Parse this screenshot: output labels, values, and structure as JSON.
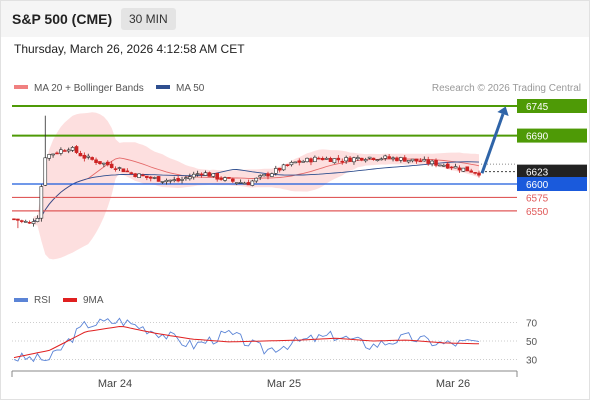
{
  "header": {
    "title": "S&P 500 (CME)",
    "timeframe": "30 MIN",
    "timestamp": "Thursday, March 26, 2026 4:12:58 AM CET"
  },
  "legend": {
    "ma20": "MA 20 + Bollinger Bands",
    "ma50": "MA 50",
    "credit": "Research © 2026 Trading Central",
    "rsi": "RSI",
    "rsi_ma": "9MA"
  },
  "colors": {
    "up": "#2a2a2a",
    "down": "#cc2222",
    "ma20": "#e56a6a",
    "band_fill": "#fdd9d9",
    "ma50": "#2f4f8f",
    "green_level": "#4e9a06",
    "blue_level": "#1a5adc",
    "red_level": "#e05a5a",
    "current_price": "#222222",
    "arrow": "#2f64a8",
    "rsi": "#5b84d6",
    "rsi_ma": "#e02020"
  },
  "chart_data": [
    {
      "type": "candlestick",
      "title": "S&P 500 (CME) 30 MIN",
      "x_tick_labels": [
        "Mar 24",
        "Mar 25",
        "Mar 26"
      ],
      "ylim": [
        6492,
        6762
      ],
      "levels": [
        {
          "label": "6745",
          "value": 6745,
          "kind": "resistance"
        },
        {
          "label": "6690",
          "value": 6690,
          "kind": "resistance"
        },
        {
          "label": "6623",
          "value": 6623,
          "kind": "current"
        },
        {
          "label": "6600",
          "value": 6600,
          "kind": "pivot"
        },
        {
          "label": "6575",
          "value": 6575,
          "kind": "support"
        },
        {
          "label": "6550",
          "value": 6550,
          "kind": "support"
        }
      ],
      "key_points": [
        {
          "time": "start",
          "close": 6535
        },
        {
          "time": "early Mar 24 low",
          "close": 6525
        },
        {
          "time": "Mar 24 spike high",
          "high": 6727
        },
        {
          "time": "Mar 24 consolidation",
          "close": 6655
        },
        {
          "time": "Mar 24 late",
          "close": 6605
        },
        {
          "time": "Mar 25 open area",
          "close": 6610
        },
        {
          "time": "Mar 25 mid",
          "close": 6650
        },
        {
          "time": "Mar 26 area",
          "close": 6645
        },
        {
          "time": "latest",
          "close": 6623
        }
      ],
      "projection": {
        "from": 6620,
        "to": 6745
      }
    },
    {
      "type": "line",
      "title": "RSI",
      "series": [
        {
          "name": "RSI"
        },
        {
          "name": "9MA"
        }
      ],
      "y_tick_labels": [
        "70",
        "50",
        "30"
      ],
      "ylim": [
        20,
        80
      ],
      "rsi_key_points": [
        32,
        30,
        68,
        72,
        60,
        45,
        58,
        40,
        50,
        56,
        45,
        54,
        47,
        49
      ],
      "rsi_ma_key_points": [
        32,
        40,
        60,
        66,
        58,
        52,
        49,
        50,
        51,
        53,
        50,
        51,
        48,
        47
      ]
    }
  ]
}
